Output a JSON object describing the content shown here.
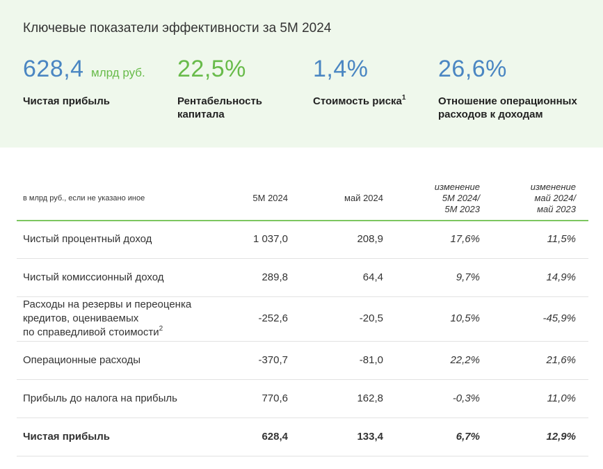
{
  "header": {
    "title": "Ключевые показатели эффективности за 5M 2024"
  },
  "kpis": [
    {
      "value": "628,4",
      "unit": "млрд руб.",
      "label": [
        "Чистая прибыль"
      ],
      "color": "#4a86c2"
    },
    {
      "value": "22,5%",
      "label": [
        "Рентабельность",
        "капитала"
      ],
      "color": "#68bb4a"
    },
    {
      "value": "1,4%",
      "label": [
        "Стоимость риска"
      ],
      "note": "1",
      "color": "#4a86c2"
    },
    {
      "value": "26,6%",
      "label": [
        "Отношение операционных",
        "расходов к доходам"
      ],
      "color": "#4a86c2"
    }
  ],
  "table": {
    "columns": [
      [
        "в млрд руб., если не указано иное"
      ],
      [
        "5M 2024"
      ],
      [
        "май 2024"
      ],
      [
        "изменение",
        "5M 2024/",
        "5M 2023"
      ],
      [
        "изменение",
        "май 2024/",
        "май 2023"
      ]
    ],
    "rows": [
      {
        "label": [
          "Чистый процентный доход"
        ],
        "values": [
          "1 037,0",
          "208,9",
          "17,6%",
          "11,5%"
        ]
      },
      {
        "label": [
          "Чистый комиссионный доход"
        ],
        "values": [
          "289,8",
          "64,4",
          "9,7%",
          "14,9%"
        ]
      },
      {
        "label": [
          "Расходы на резервы и переоценка",
          "кредитов, оцениваемых",
          "по справедливой стоимости"
        ],
        "note": "2",
        "values": [
          "-252,6",
          "-20,5",
          "10,5%",
          "-45,9%"
        ]
      },
      {
        "label": [
          "Операционные расходы"
        ],
        "values": [
          "-370,7",
          "-81,0",
          "22,2%",
          "21,6%"
        ]
      },
      {
        "label": [
          "Прибыль до налога на прибыль"
        ],
        "values": [
          "770,6",
          "162,8",
          "-0,3%",
          "11,0%"
        ]
      },
      {
        "label": [
          "Чистая прибыль"
        ],
        "values": [
          "628,4",
          "133,4",
          "6,7%",
          "12,9%"
        ]
      }
    ]
  }
}
